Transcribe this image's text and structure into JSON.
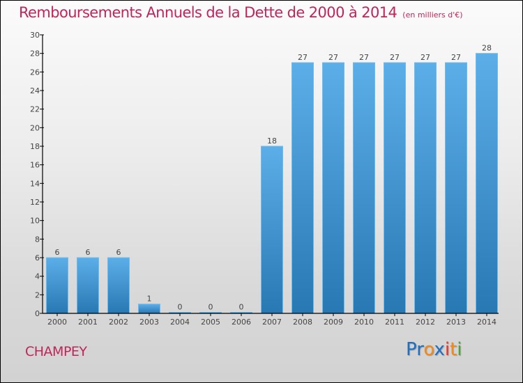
{
  "chart_data": {
    "type": "bar",
    "title": "Remboursements Annuels de la Dette de 2000 à 2014",
    "unit_note": "(en milliers d'€)",
    "xlabel": "",
    "ylabel": "",
    "categories": [
      "2000",
      "2001",
      "2002",
      "2003",
      "2004",
      "2005",
      "2006",
      "2007",
      "2008",
      "2009",
      "2010",
      "2011",
      "2012",
      "2013",
      "2014"
    ],
    "values": [
      6,
      6,
      6,
      1,
      0,
      0,
      0,
      18,
      27,
      27,
      27,
      27,
      27,
      27,
      28
    ],
    "data_labels": [
      "6",
      "6",
      "6",
      "1",
      "0",
      "0",
      "0",
      "18",
      "27",
      "27",
      "27",
      "27",
      "27",
      "27",
      "28"
    ],
    "ylim": [
      0,
      30
    ],
    "yticks": [
      0,
      2,
      4,
      6,
      8,
      10,
      12,
      14,
      16,
      18,
      20,
      22,
      24,
      26,
      28,
      30
    ],
    "grid": false,
    "legend": "none",
    "bar_color_top": "#5caee8",
    "bar_color_bottom": "#2878b4"
  },
  "footer": {
    "commune": "CHAMPEY",
    "logo": [
      "P",
      "r",
      "o",
      "x",
      "i",
      "t",
      "i"
    ],
    "logo_colors": [
      "#1f6fc0",
      "#1f6fc0",
      "#f08a1c",
      "#1f6fc0",
      "#e8352b",
      "#f08a1c",
      "#4aa832"
    ]
  },
  "colors": {
    "title": "#c0245b",
    "axis": "#000000"
  }
}
